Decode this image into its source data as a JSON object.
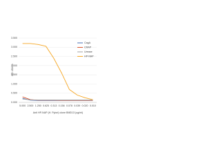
{
  "chart_data": {
    "type": "line",
    "x_label": "Anti HP-NAP (H. Pylori) clone BMD13 (ug/ml)",
    "y_label": "OD 450nm",
    "categories": [
      "5.000",
      "2.500",
      "1.250",
      "0.625",
      "0.313",
      "0.156",
      "0.078",
      "0.039",
      "0.020",
      "0.010"
    ],
    "series": [
      {
        "name": "CagA",
        "color": "#4a6fb5",
        "values": [
          0.22,
          0.12,
          0.1,
          0.1,
          0.1,
          0.1,
          0.1,
          0.1,
          0.1,
          0.1
        ]
      },
      {
        "name": "CRAP",
        "color": "#d9542c",
        "values": [
          0.3,
          0.15,
          0.12,
          0.12,
          0.12,
          0.11,
          0.11,
          0.11,
          0.11,
          0.11
        ]
      },
      {
        "name": "Urease",
        "color": "#a0a0a0",
        "values": [
          0.18,
          0.14,
          0.13,
          0.13,
          0.13,
          0.13,
          0.13,
          0.13,
          0.13,
          0.13
        ]
      },
      {
        "name": "HP-NAP",
        "color": "#f5a623",
        "values": [
          3.2,
          3.2,
          3.15,
          3.05,
          2.4,
          1.6,
          0.7,
          0.4,
          0.25,
          0.15
        ]
      }
    ],
    "ylim": [
      0,
      3.5
    ],
    "yticks": [
      {
        "value": 0,
        "label": "0.000"
      },
      {
        "value": 0.5,
        "label": "0.500"
      },
      {
        "value": 1,
        "label": "1.000"
      },
      {
        "value": 1.5,
        "label": "1.500"
      },
      {
        "value": 2,
        "label": "2.000"
      },
      {
        "value": 2.5,
        "label": "2.500"
      },
      {
        "value": 3,
        "label": "3.000"
      },
      {
        "value": 3.5,
        "label": "3.500"
      }
    ],
    "grid": true
  }
}
